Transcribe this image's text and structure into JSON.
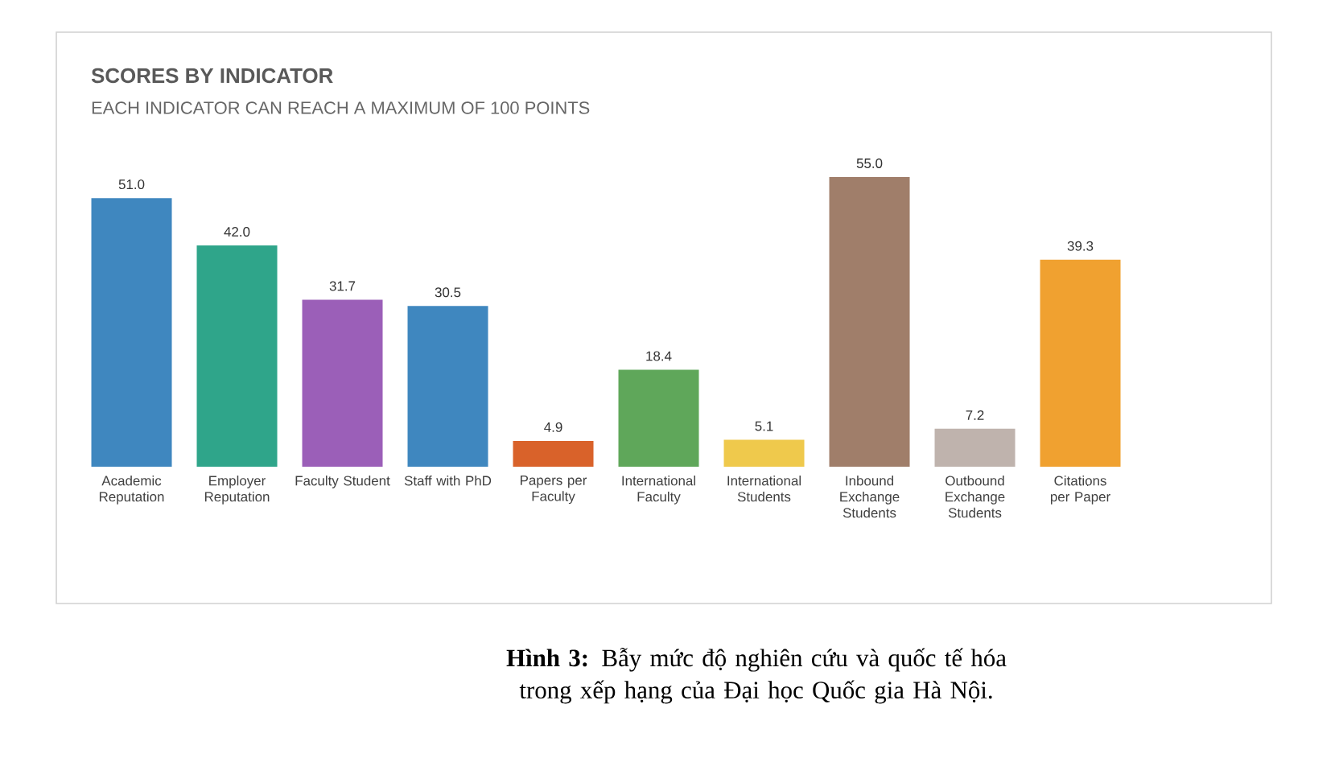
{
  "chart_data": {
    "type": "bar",
    "title": "SCORES BY INDICATOR",
    "subtitle": "EACH INDICATOR CAN REACH A MAXIMUM OF 100 POINTS",
    "categories": [
      "Academic Reputation",
      "Employer Reputation",
      "Faculty Student",
      "Staff with PhD",
      "Papers per Faculty",
      "International Faculty",
      "International Students",
      "Inbound Exchange Students",
      "Outbound Exchange Students",
      "Citations per Paper"
    ],
    "values": [
      51.0,
      42.0,
      31.7,
      30.5,
      4.9,
      18.4,
      5.1,
      55.0,
      7.2,
      39.3
    ],
    "value_labels": [
      "51.0",
      "42.0",
      "31.7",
      "30.5",
      "4.9",
      "18.4",
      "5.1",
      "55.0",
      "7.2",
      "39.3"
    ],
    "colors": [
      "#3f87bf",
      "#2fa58a",
      "#9b5fb8",
      "#3f87bf",
      "#d9622a",
      "#5fa75a",
      "#efc94c",
      "#a07e6a",
      "#bfb3ad",
      "#f0a130"
    ],
    "annotations": [
      "**Hình 3:** Bẫy mức độ nghiên cứu và quốc tế hóa trong xếp hạng của Đại học Quốc gia Hà Nội."
    ]
  }
}
